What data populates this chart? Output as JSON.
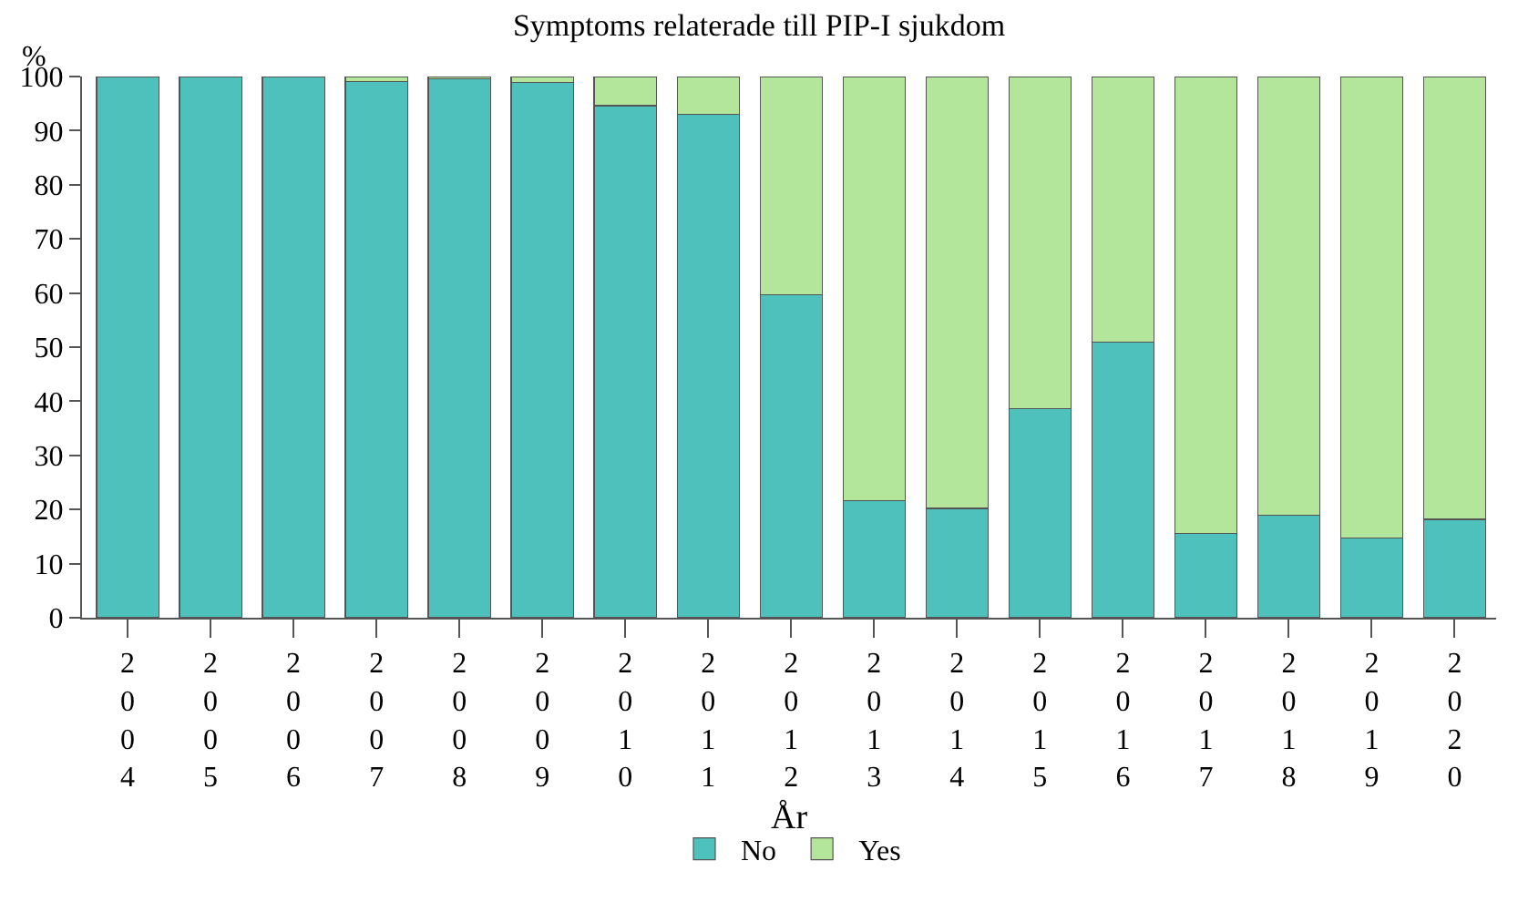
{
  "chart_data": {
    "type": "bar",
    "title": "Symptoms relaterade till PIP-I sjukdom",
    "xlabel": "År",
    "ylabel": "%",
    "categories": [
      "2004",
      "2005",
      "2006",
      "2007",
      "2008",
      "2009",
      "2010",
      "2011",
      "2012",
      "2013",
      "2014",
      "2015",
      "2016",
      "2017",
      "2018",
      "2019",
      "2020"
    ],
    "series": [
      {
        "name": "No",
        "color": "#4fc1bd",
        "values": [
          100,
          100,
          100,
          99.1,
          99.6,
          98.9,
          94.6,
          93.0,
          59.7,
          21.6,
          20.2,
          38.7,
          50.9,
          15.6,
          18.9,
          14.7,
          18.2
        ]
      },
      {
        "name": "Yes",
        "color": "#b3e69a",
        "values": [
          null,
          null,
          null,
          0.9,
          0.4,
          1.1,
          5.4,
          7.0,
          40.3,
          78.4,
          79.8,
          61.3,
          49.1,
          84.4,
          81.1,
          85.3,
          81.8
        ]
      }
    ],
    "stacked": true,
    "ylim": [
      0,
      100
    ],
    "yticks": [
      0,
      10,
      20,
      30,
      40,
      50,
      60,
      70,
      80,
      90,
      100
    ],
    "legend": "bottom"
  }
}
